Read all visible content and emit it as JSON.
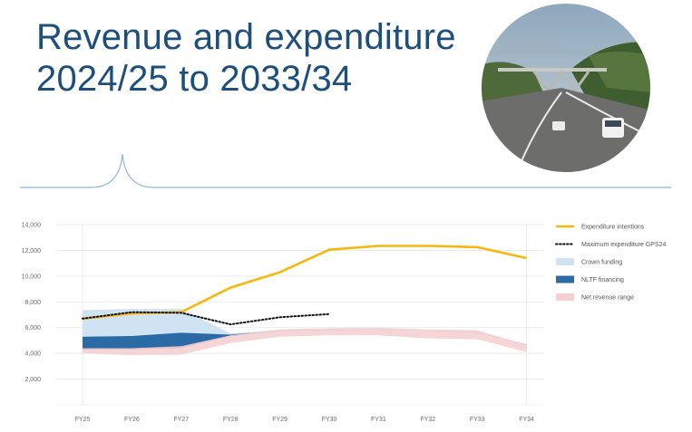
{
  "header": {
    "title_line1": "Revenue and expenditure",
    "title_line2": "2024/25 to 2033/34"
  },
  "photo": {
    "subject": "motorway-bridge-photo"
  },
  "colors": {
    "title": "#1d4f7c",
    "divider": "#8eb5d6",
    "expenditure_intentions": "#f6b80f",
    "max_expenditure": "#111111",
    "crown_funding": "#cfe3f3",
    "nltf_financing": "#2c6aa6",
    "net_revenue_range": "#f4d0d2",
    "grid": "#e6e6e6"
  },
  "chart_data": {
    "type": "area",
    "categories": [
      "FY25",
      "FY26",
      "FY27",
      "FY28",
      "FY29",
      "FY30",
      "FY31",
      "FY32",
      "FY33",
      "FY34"
    ],
    "y_ticks": [
      "2,000",
      "4,000",
      "6,000",
      "8,000",
      "10,000",
      "12,000",
      "14,000"
    ],
    "ylim": [
      0,
      14000
    ],
    "grid": true,
    "legend_position": "right",
    "series": [
      {
        "name": "Expenditure intentions",
        "kind": "line",
        "values": [
          6700,
          7100,
          7200,
          9100,
          10300,
          12050,
          12350,
          12350,
          12250,
          11400
        ]
      },
      {
        "name": "Maximum expenditure GPS24",
        "kind": "dotted-line",
        "values": [
          6700,
          7200,
          7150,
          6250,
          6800,
          7050,
          null,
          null,
          null,
          null
        ]
      },
      {
        "name": "Crown funding",
        "kind": "band",
        "lower": [
          5300,
          5350,
          5600,
          5350,
          5750,
          5800,
          5850,
          5750,
          5650,
          4650
        ],
        "upper": [
          7350,
          7450,
          7450,
          5550,
          5800,
          5850,
          5900,
          5800,
          5700,
          4700
        ]
      },
      {
        "name": "NLTF financing",
        "kind": "band",
        "lower": [
          4300,
          4300,
          4400,
          5350,
          5750,
          5800,
          5850,
          5750,
          5650,
          4650
        ],
        "upper": [
          5300,
          5350,
          5600,
          5450,
          5780,
          5820,
          5870,
          5770,
          5670,
          4670
        ]
      },
      {
        "name": "Net revenue range",
        "kind": "band",
        "lower": [
          4000,
          3850,
          3900,
          4800,
          5300,
          5400,
          5400,
          5150,
          5100,
          4100
        ],
        "upper": [
          4400,
          4400,
          4550,
          5400,
          5850,
          5950,
          6000,
          5850,
          5800,
          4650
        ]
      }
    ]
  }
}
